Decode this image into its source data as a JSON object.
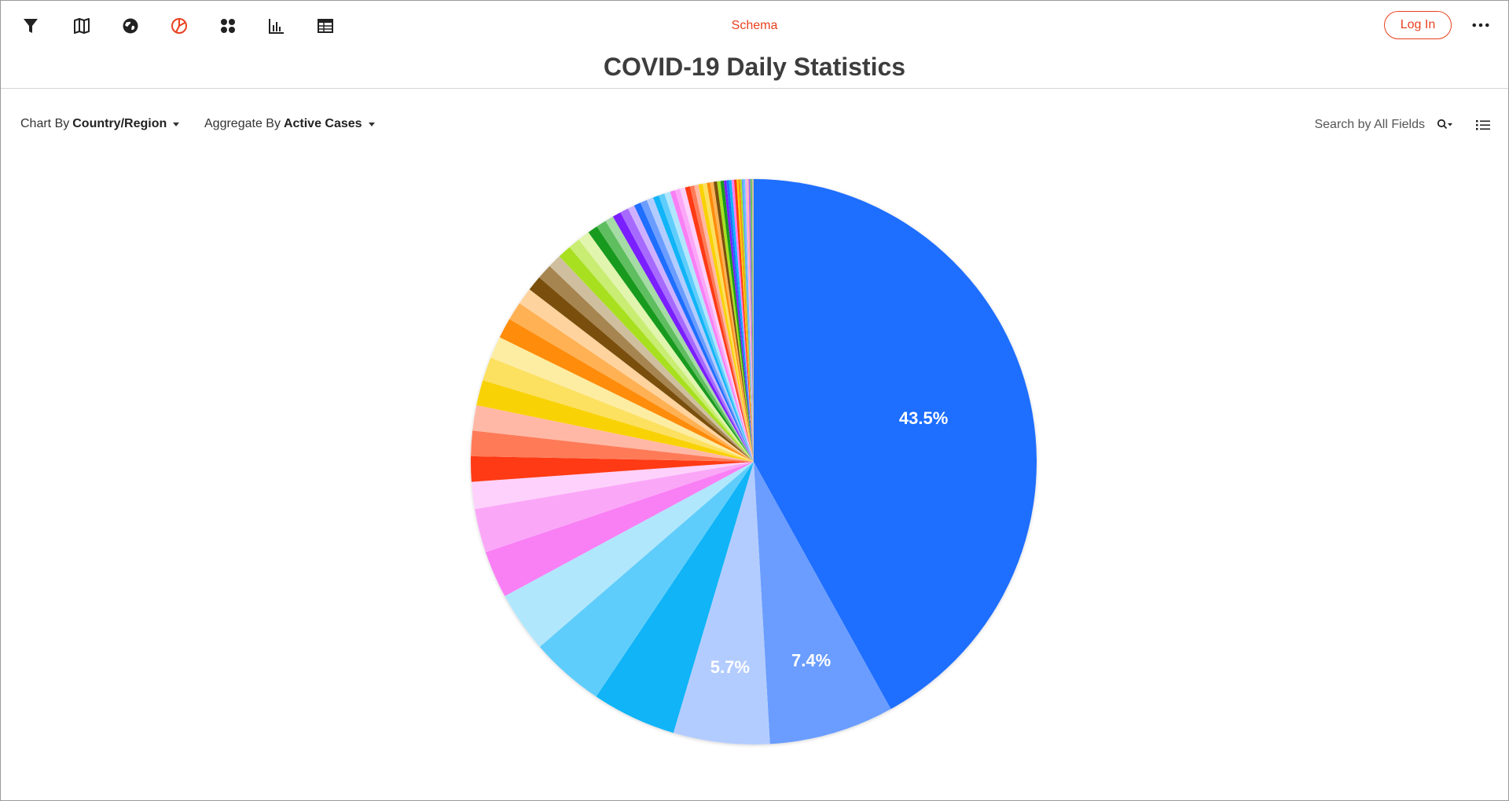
{
  "toolbar": {
    "icons": [
      "filter-icon",
      "map-icon",
      "globe-icon",
      "pie-chart-icon",
      "bubble-icon",
      "bar-chart-icon",
      "table-icon"
    ],
    "active_icon": "pie-chart-icon",
    "schema_label": "Schema",
    "login_label": "Log In",
    "more_icon": "more-horizontal-icon"
  },
  "page": {
    "title": "COVID-19 Daily Statistics"
  },
  "controls": {
    "chart_by_prefix": "Chart By",
    "chart_by_value": "Country/Region",
    "aggregate_by_prefix": "Aggregate By",
    "aggregate_by_value": "Active Cases",
    "search_placeholder": "Search by All Fields"
  },
  "colors": {
    "accent": "#e8411f",
    "icon": "#222222"
  },
  "chart_data": {
    "type": "pie",
    "title": "",
    "value_unit": "percent",
    "labels_shown": [
      "43.5%",
      "7.4%",
      "5.7%"
    ],
    "slices": [
      {
        "value": 43.5,
        "color": "#1e6eff",
        "label": "43.5%"
      },
      {
        "value": 7.4,
        "color": "#6a9dff",
        "label": "7.4%"
      },
      {
        "value": 5.7,
        "color": "#b3ccff",
        "label": "5.7%"
      },
      {
        "value": 5.0,
        "color": "#10b4f7"
      },
      {
        "value": 4.4,
        "color": "#5fcdfb"
      },
      {
        "value": 3.6,
        "color": "#b1e7fc"
      },
      {
        "value": 2.8,
        "color": "#f97ff5"
      },
      {
        "value": 2.6,
        "color": "#fba7f8"
      },
      {
        "value": 1.6,
        "color": "#fdd1fb"
      },
      {
        "value": 1.5,
        "color": "#ff3a14"
      },
      {
        "value": 1.5,
        "color": "#ff7b58"
      },
      {
        "value": 1.5,
        "color": "#ffb8a5"
      },
      {
        "value": 1.5,
        "color": "#f9d205"
      },
      {
        "value": 1.4,
        "color": "#fce060"
      },
      {
        "value": 1.3,
        "color": "#fdeda3"
      },
      {
        "value": 1.2,
        "color": "#ff8c0a"
      },
      {
        "value": 1.1,
        "color": "#ffb153"
      },
      {
        "value": 1.0,
        "color": "#ffd39e"
      },
      {
        "value": 0.9,
        "color": "#7a4f0d"
      },
      {
        "value": 0.9,
        "color": "#a68550"
      },
      {
        "value": 0.8,
        "color": "#cfbf9f"
      },
      {
        "value": 0.8,
        "color": "#a8e01f"
      },
      {
        "value": 0.7,
        "color": "#c9ed72"
      },
      {
        "value": 0.7,
        "color": "#e1f5ae"
      },
      {
        "value": 0.6,
        "color": "#189a1e"
      },
      {
        "value": 0.6,
        "color": "#5fbe5f"
      },
      {
        "value": 0.5,
        "color": "#a5dba5"
      },
      {
        "value": 0.5,
        "color": "#7a1fff"
      },
      {
        "value": 0.5,
        "color": "#a66aff"
      },
      {
        "value": 0.4,
        "color": "#cfb0ff"
      },
      {
        "value": 0.4,
        "color": "#1e6eff"
      },
      {
        "value": 0.4,
        "color": "#6a9dff"
      },
      {
        "value": 0.4,
        "color": "#b3ccff"
      },
      {
        "value": 0.35,
        "color": "#10b4f7"
      },
      {
        "value": 0.35,
        "color": "#5fcdfb"
      },
      {
        "value": 0.35,
        "color": "#b1e7fc"
      },
      {
        "value": 0.3,
        "color": "#f97ff5"
      },
      {
        "value": 0.3,
        "color": "#fba7f8"
      },
      {
        "value": 0.3,
        "color": "#fdd1fb"
      },
      {
        "value": 0.3,
        "color": "#ff3a14"
      },
      {
        "value": 0.25,
        "color": "#ff7b58"
      },
      {
        "value": 0.25,
        "color": "#ffb8a5"
      },
      {
        "value": 0.25,
        "color": "#f9d205"
      },
      {
        "value": 0.25,
        "color": "#fce060"
      },
      {
        "value": 0.2,
        "color": "#ff8c0a"
      },
      {
        "value": 0.2,
        "color": "#ffb153"
      },
      {
        "value": 0.2,
        "color": "#7a4f0d"
      },
      {
        "value": 0.2,
        "color": "#a8e01f"
      },
      {
        "value": 0.2,
        "color": "#189a1e"
      },
      {
        "value": 0.15,
        "color": "#7a1fff"
      },
      {
        "value": 0.15,
        "color": "#1e6eff"
      },
      {
        "value": 0.15,
        "color": "#10b4f7"
      },
      {
        "value": 0.15,
        "color": "#f97ff5"
      },
      {
        "value": 0.15,
        "color": "#ff3a14"
      },
      {
        "value": 0.1,
        "color": "#f9d205"
      },
      {
        "value": 0.1,
        "color": "#ff8c0a"
      },
      {
        "value": 0.1,
        "color": "#a8e01f"
      },
      {
        "value": 0.1,
        "color": "#6a9dff"
      },
      {
        "value": 0.1,
        "color": "#5fcdfb"
      },
      {
        "value": 0.1,
        "color": "#fba7f8"
      },
      {
        "value": 0.1,
        "color": "#ffb8a5"
      },
      {
        "value": 0.1,
        "color": "#a66aff"
      },
      {
        "value": 0.1,
        "color": "#5fbe5f"
      },
      {
        "value": 0.1,
        "color": "#cfbf9f"
      }
    ]
  }
}
